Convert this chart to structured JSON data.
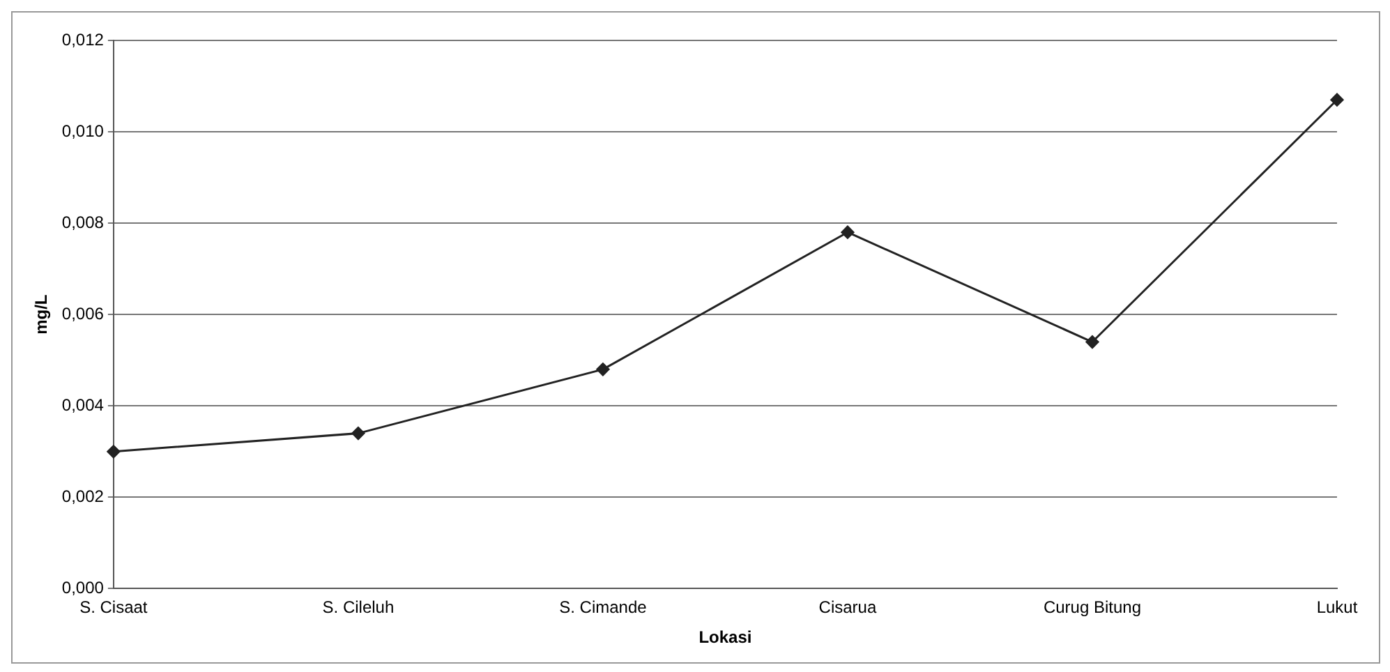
{
  "chart_data": {
    "type": "line",
    "xlabel": "Lokasi",
    "ylabel": "mg/L",
    "categories": [
      "S. Cisaat",
      "S. Cileluh",
      "S. Cimande",
      "Cisarua",
      "Curug Bitung",
      "Lukut"
    ],
    "series": [
      {
        "color": "#222222",
        "values": [
          0.003,
          0.0034,
          0.0048,
          0.0078,
          0.0054,
          0.0107
        ]
      }
    ],
    "ylim": [
      0,
      0.012
    ],
    "yticks": [
      {
        "value": 0,
        "label": "0,000"
      },
      {
        "value": 0.002,
        "label": "0,002"
      },
      {
        "value": 0.004,
        "label": "0,004"
      },
      {
        "value": 0.006,
        "label": "0,006"
      },
      {
        "value": 0.008,
        "label": "0,008"
      },
      {
        "value": 0.01,
        "label": "0,010"
      },
      {
        "value": 0.012,
        "label": "0,012"
      }
    ],
    "grid": "y",
    "legend": false,
    "marker": "diamond",
    "line_style": "solid"
  }
}
